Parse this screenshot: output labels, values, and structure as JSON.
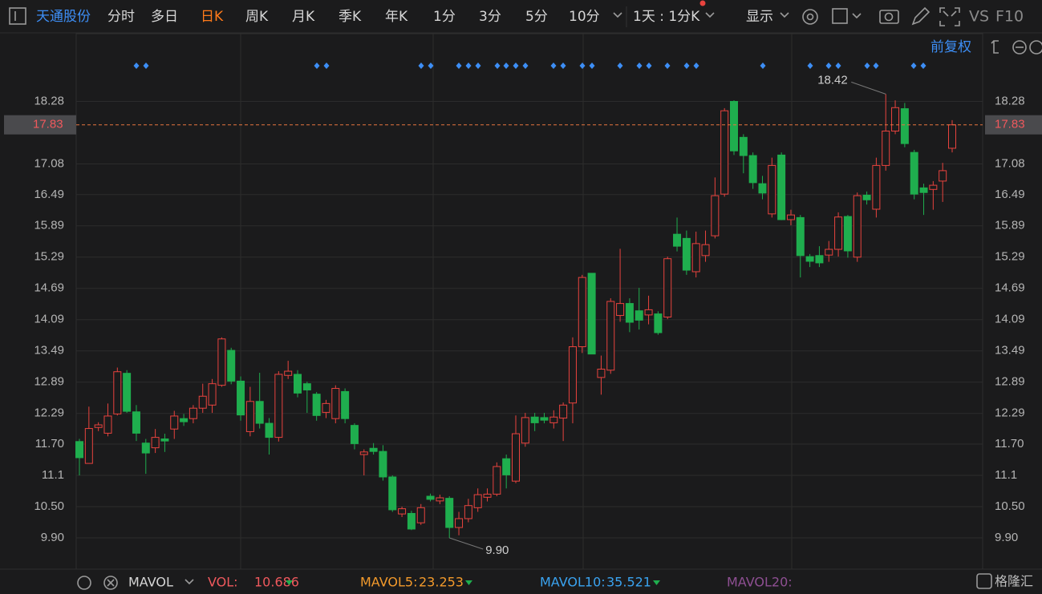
{
  "toolbar": {
    "stock": "天通股份",
    "tabs": [
      "分时",
      "多日",
      "日K",
      "周K",
      "月K",
      "季K",
      "年K",
      "1分",
      "3分",
      "5分",
      "10分"
    ],
    "active_tab": "日K",
    "period": "1天 : 1分K",
    "display": "显示",
    "vs": "VS",
    "f10": "F10",
    "adjust": "前复权"
  },
  "chart_data": {
    "type": "candlestick",
    "up_color": "#e8433e",
    "down_color": "#1fae4e",
    "grid": true,
    "ylim": [
      9.3,
      19.58
    ],
    "yticks": [
      18.28,
      17.08,
      16.49,
      15.89,
      15.29,
      14.69,
      14.09,
      13.49,
      12.89,
      12.29,
      {
        "value": 11.7,
        "label": "11.70"
      },
      11.1,
      {
        "value": 10.5,
        "label": "10.50"
      },
      {
        "value": 9.9,
        "label": "9.90"
      }
    ],
    "open": [
      11.75,
      11.33,
      12.02,
      11.91,
      12.28,
      13.06,
      12.32,
      11.72,
      11.63,
      11.8,
      11.99,
      12.19,
      12.19,
      12.39,
      12.45,
      12.83,
      13.5,
      12.91,
      11.94,
      12.52,
      12.1,
      11.83,
      13.02,
      13.04,
      12.86,
      12.66,
      12.31,
      12.19,
      12.71,
      12.06,
      11.5,
      11.62,
      11.56,
      11.07,
      10.36,
      10.37,
      10.19,
      10.7,
      10.61,
      10.66,
      10.1,
      10.27,
      10.48,
      10.68,
      10.74,
      11.42,
      10.99,
      11.72,
      12.22,
      12.21,
      12.11,
      12.2,
      12.49,
      13.57,
      14.98,
      12.98,
      13.12,
      14.17,
      14.4,
      14.26,
      14.18,
      14.2,
      14.14,
      15.73,
      15.65,
      15.01,
      15.32,
      15.7,
      16.5,
      18.28,
      17.59,
      17.24,
      16.7,
      16.12,
      17.25,
      16.01,
      16.05,
      15.3,
      15.32,
      15.33,
      15.44,
      16.07,
      15.29,
      16.48,
      16.21,
      17.05,
      17.71,
      18.14,
      17.3,
      16.62,
      16.59,
      16.75,
      17.38
    ],
    "high": [
      11.8,
      12.42,
      12.12,
      12.48,
      13.17,
      13.12,
      12.45,
      11.8,
      11.99,
      11.9,
      12.34,
      12.28,
      12.45,
      12.86,
      12.95,
      13.75,
      13.55,
      13.0,
      12.8,
      13.07,
      12.2,
      13.1,
      13.3,
      13.12,
      12.9,
      12.7,
      12.55,
      12.83,
      12.77,
      12.1,
      11.6,
      11.72,
      11.68,
      11.1,
      10.5,
      10.42,
      10.55,
      10.75,
      10.73,
      10.7,
      10.4,
      10.65,
      10.85,
      10.85,
      11.35,
      11.5,
      12.25,
      12.3,
      12.3,
      12.3,
      12.35,
      12.5,
      13.75,
      14.95,
      14.98,
      13.4,
      14.5,
      15.45,
      14.5,
      14.7,
      14.55,
      14.25,
      15.3,
      16.05,
      15.8,
      15.78,
      15.8,
      16.82,
      18.15,
      18.3,
      17.65,
      17.3,
      16.85,
      17.2,
      17.3,
      16.2,
      16.1,
      15.35,
      15.5,
      15.6,
      16.15,
      16.1,
      16.53,
      16.55,
      17.2,
      18.42,
      18.3,
      18.25,
      17.35,
      16.7,
      16.75,
      17.1,
      17.92
    ],
    "low": [
      11.1,
      11.33,
      11.95,
      11.85,
      12.25,
      12.3,
      11.76,
      11.13,
      11.53,
      11.55,
      11.8,
      12.05,
      12.1,
      12.3,
      12.3,
      12.8,
      12.85,
      12.15,
      11.85,
      12.0,
      11.5,
      11.75,
      12.95,
      12.6,
      12.3,
      12.15,
      12.2,
      12.1,
      12.1,
      11.6,
      11.1,
      11.5,
      11.0,
      10.4,
      10.3,
      10.05,
      10.15,
      10.6,
      10.55,
      9.9,
      9.95,
      10.2,
      10.4,
      10.6,
      10.7,
      10.85,
      10.95,
      11.65,
      11.95,
      12.1,
      12.0,
      11.76,
      12.1,
      13.45,
      13.43,
      12.65,
      13.05,
      14.05,
      13.85,
      13.9,
      14.0,
      13.8,
      14.1,
      15.4,
      14.95,
      14.9,
      15.2,
      15.65,
      16.45,
      17.25,
      16.9,
      16.6,
      16.4,
      16.05,
      16.0,
      15.9,
      14.9,
      15.1,
      15.1,
      15.2,
      15.3,
      15.28,
      15.2,
      16.3,
      16.05,
      16.95,
      17.65,
      17.4,
      16.4,
      16.1,
      16.2,
      16.35,
      17.3
    ],
    "close": [
      11.44,
      12.0,
      12.07,
      12.24,
      13.09,
      12.33,
      11.91,
      11.53,
      11.83,
      11.76,
      12.24,
      12.13,
      12.39,
      12.62,
      12.86,
      13.72,
      12.91,
      12.26,
      12.52,
      12.1,
      11.83,
      13.04,
      13.1,
      12.68,
      12.74,
      12.25,
      12.48,
      12.77,
      12.19,
      11.71,
      11.55,
      11.56,
      11.07,
      10.44,
      10.46,
      10.07,
      10.48,
      10.64,
      10.67,
      10.1,
      10.27,
      10.52,
      10.73,
      10.74,
      11.27,
      11.11,
      11.9,
      12.21,
      12.11,
      12.16,
      12.22,
      12.45,
      13.57,
      14.9,
      13.43,
      13.14,
      14.44,
      14.4,
      14.04,
      14.08,
      14.28,
      13.84,
      15.26,
      15.5,
      15.04,
      15.55,
      15.53,
      16.47,
      18.1,
      17.33,
      17.24,
      16.72,
      16.52,
      17.05,
      16.01,
      16.1,
      15.32,
      15.21,
      15.18,
      15.44,
      16.06,
      15.41,
      16.47,
      16.39,
      17.05,
      17.71,
      18.16,
      17.47,
      16.5,
      16.53,
      16.67,
      16.95,
      17.83
    ],
    "last_price": 17.83,
    "annotations": [
      {
        "value": 18.42,
        "label": "18.42",
        "at": "high"
      },
      {
        "value": 9.9,
        "label": "9.90",
        "at": "low"
      }
    ]
  },
  "indicator": {
    "name": "MAVOL",
    "items": [
      {
        "label": "VOL:",
        "value": 10.686,
        "color": "#f0595d"
      },
      {
        "label": "MAVOL5:",
        "value": 23.253,
        "color": "#f39a2b"
      },
      {
        "label": "MAVOL10:",
        "value": 35.521,
        "color": "#3aa3f0"
      },
      {
        "label": "MAVOL20:",
        "color": "#8e4f92"
      }
    ]
  },
  "brand": "格隆汇"
}
